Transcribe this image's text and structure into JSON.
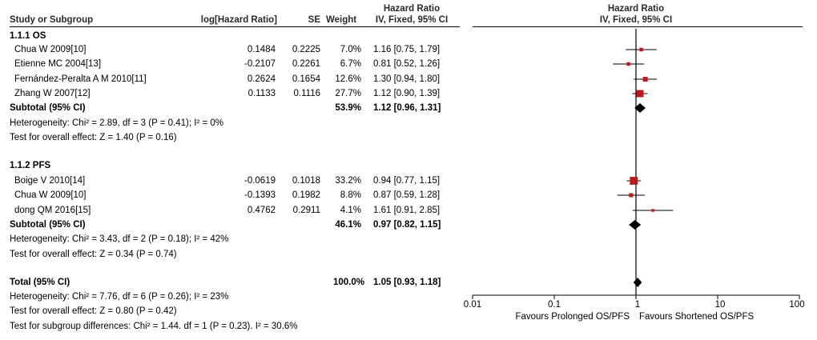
{
  "headers": {
    "study": "Study or Subgroup",
    "log_hr": "log[Hazard Ratio]",
    "se": "SE",
    "weight": "Weight",
    "hr_title": "Hazard Ratio",
    "hr_sub": "IV, Fixed, 95% CI",
    "plot_title": "Hazard Ratio",
    "plot_sub": "IV, Fixed, 95% CI"
  },
  "groups": [
    {
      "label": "1.1.1 OS",
      "studies": [
        {
          "name": "Chua W 2009[10]",
          "log_hr": "0.1484",
          "se": "0.2225",
          "weight": "7.0%",
          "ci": "1.16 [0.75, 1.79]"
        },
        {
          "name": "Etienne MC 2004[13]",
          "log_hr": "-0.2107",
          "se": "0.2261",
          "weight": "6.7%",
          "ci": "0.81 [0.52, 1.26]"
        },
        {
          "name": "Fernández-Peralta A M 2010[11]",
          "log_hr": "0.2624",
          "se": "0.1654",
          "weight": "12.6%",
          "ci": "1.30 [0.94, 1.80]"
        },
        {
          "name": "Zhang W 2007[12]",
          "log_hr": "0.1133",
          "se": "0.1116",
          "weight": "27.7%",
          "ci": "1.12 [0.90, 1.39]"
        }
      ],
      "subtotal": {
        "label": "Subtotal (95% CI)",
        "weight": "53.9%",
        "ci": "1.12 [0.96, 1.31]"
      },
      "heterogeneity": "Heterogeneity: Chi² = 2.89, df = 3 (P = 0.41); I² = 0%",
      "overall": "Test for overall effect: Z = 1.40 (P = 0.16)"
    },
    {
      "label": "1.1.2 PFS",
      "studies": [
        {
          "name": "Boige V 2010[14]",
          "log_hr": "-0.0619",
          "se": "0.1018",
          "weight": "33.2%",
          "ci": "0.94 [0.77, 1.15]"
        },
        {
          "name": "Chua W 2009[10]",
          "log_hr": "-0.1393",
          "se": "0.1982",
          "weight": "8.8%",
          "ci": "0.87 [0.59, 1.28]"
        },
        {
          "name": "dong QM 2016[15]",
          "log_hr": "0.4762",
          "se": "0.2911",
          "weight": "4.1%",
          "ci": "1.61 [0.91, 2.85]"
        }
      ],
      "subtotal": {
        "label": "Subtotal (95% CI)",
        "weight": "46.1%",
        "ci": "0.97 [0.82, 1.15]"
      },
      "heterogeneity": "Heterogeneity: Chi² = 3.43, df = 2 (P = 0.18); I² = 42%",
      "overall": "Test for overall effect: Z = 0.34 (P = 0.74)"
    }
  ],
  "total": {
    "label": "Total (95% CI)",
    "weight": "100.0%",
    "ci": "1.05 [0.93, 1.18]",
    "heterogeneity": "Heterogeneity: Chi² = 7.76, df = 6 (P = 0.26); I² = 23%",
    "overall": "Test for overall effect: Z = 0.80 (P = 0.42)",
    "subgroup_diff": "Test for subgroup differences: Chi² = 1.44. df = 1 (P = 0.23). I² = 30.6%"
  },
  "axis": {
    "tick_labels": [
      "0.01",
      "0.1",
      "1",
      "10",
      "100"
    ],
    "favours_left": "Favours Prolonged OS/PFS",
    "favours_right": "Favours Shortened OS/PFS"
  },
  "colors": {
    "study_marker": "#c0171c",
    "diamond": "#000000",
    "line": "#000000"
  },
  "chart_data": {
    "type": "forest",
    "scale": "log",
    "xlim": [
      0.01,
      100
    ],
    "x_ticks": [
      0.01,
      0.1,
      1,
      10,
      100
    ],
    "null_line": 1,
    "studies": [
      {
        "name": "Chua W 2009[10]",
        "group": "1.1.1 OS",
        "hr": 1.16,
        "lo": 0.75,
        "hi": 1.79,
        "weight": 7.0
      },
      {
        "name": "Etienne MC 2004[13]",
        "group": "1.1.1 OS",
        "hr": 0.81,
        "lo": 0.52,
        "hi": 1.26,
        "weight": 6.7
      },
      {
        "name": "Fernández-Peralta A M 2010[11]",
        "group": "1.1.1 OS",
        "hr": 1.3,
        "lo": 0.94,
        "hi": 1.8,
        "weight": 12.6
      },
      {
        "name": "Zhang W 2007[12]",
        "group": "1.1.1 OS",
        "hr": 1.12,
        "lo": 0.9,
        "hi": 1.39,
        "weight": 27.7
      },
      {
        "name": "Boige V 2010[14]",
        "group": "1.1.2 PFS",
        "hr": 0.94,
        "lo": 0.77,
        "hi": 1.15,
        "weight": 33.2
      },
      {
        "name": "Chua W 2009[10]",
        "group": "1.1.2 PFS",
        "hr": 0.87,
        "lo": 0.59,
        "hi": 1.28,
        "weight": 8.8
      },
      {
        "name": "dong QM 2016[15]",
        "group": "1.1.2 PFS",
        "hr": 1.61,
        "lo": 0.91,
        "hi": 2.85,
        "weight": 4.1
      }
    ],
    "pooled": [
      {
        "name": "Subtotal (95% CI)",
        "group": "1.1.1 OS",
        "hr": 1.12,
        "lo": 0.96,
        "hi": 1.31
      },
      {
        "name": "Subtotal (95% CI)",
        "group": "1.1.2 PFS",
        "hr": 0.97,
        "lo": 0.82,
        "hi": 1.15
      },
      {
        "name": "Total (95% CI)",
        "group": "all",
        "hr": 1.05,
        "lo": 0.93,
        "hi": 1.18
      }
    ]
  }
}
